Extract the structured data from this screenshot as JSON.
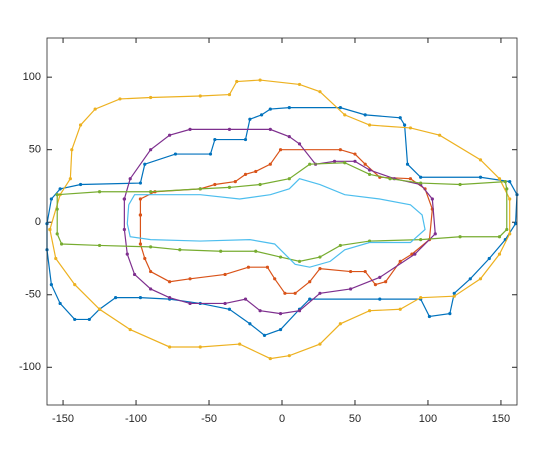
{
  "chart_data": {
    "type": "line",
    "xlim": [
      -161,
      161
    ],
    "ylim": [
      -126,
      127
    ],
    "xticks": [
      -150,
      -100,
      -50,
      0,
      50,
      100,
      150
    ],
    "yticks": [
      -100,
      -50,
      0,
      50,
      100
    ],
    "series": [
      {
        "color": "#0072bd",
        "marker": true,
        "x": [
          -161,
          -158,
          -152,
          -138,
          -97,
          -94,
          -73,
          -49,
          -46,
          -25,
          -22,
          -14,
          -8,
          5,
          40,
          57,
          81,
          84,
          86,
          95,
          136,
          156,
          161,
          160,
          153,
          142,
          129,
          118,
          115,
          101,
          95,
          67,
          19,
          12,
          -1,
          -12,
          -22,
          -36,
          -56,
          -77,
          -97,
          -114,
          -125,
          -132,
          -142,
          -152,
          -158,
          -161,
          -161
        ],
        "values": [
          -1,
          16,
          23,
          26,
          27,
          40,
          47,
          47,
          57,
          57,
          71,
          74,
          78,
          79,
          79,
          74,
          72,
          67,
          40,
          31,
          31,
          28,
          19,
          -1,
          -12,
          -25,
          -39,
          -49,
          -63,
          -65,
          -53,
          -53,
          -53,
          -60,
          -74,
          -78,
          -70,
          -60,
          -56,
          -53,
          -52,
          -52,
          -60,
          -67,
          -67,
          -56,
          -43,
          -19,
          -1
        ]
      },
      {
        "color": "#d95319",
        "marker": true,
        "x": [
          -97,
          -97,
          -87,
          -56,
          -46,
          -32,
          -25,
          -18,
          -8,
          -1,
          40,
          50,
          57,
          67,
          88,
          98,
          103,
          101,
          89,
          81,
          71,
          64,
          57,
          47,
          26,
          19,
          9,
          2,
          -5,
          -10,
          -23,
          -39,
          -63,
          -77,
          -90,
          -94,
          -97,
          -97
        ],
        "values": [
          5,
          16,
          21,
          23,
          26,
          28,
          33,
          35,
          40,
          50,
          50,
          47,
          40,
          31,
          30,
          23,
          9,
          -12,
          -22,
          -27,
          -41,
          -43,
          -34,
          -34,
          -32,
          -41,
          -49,
          -49,
          -39,
          -31,
          -31,
          -36,
          -39,
          -41,
          -34,
          -25,
          -15,
          5
        ]
      },
      {
        "color": "#edb120",
        "marker": true,
        "x": [
          -159,
          -152,
          -145,
          -144,
          -138,
          -128,
          -111,
          -90,
          -56,
          -36,
          -31,
          -15,
          12,
          26,
          43,
          60,
          88,
          108,
          136,
          149,
          156,
          156,
          149,
          136,
          118,
          95,
          81,
          60,
          40,
          26,
          5,
          -8,
          -29,
          -56,
          -77,
          -104,
          -125,
          -142,
          -155,
          -159
        ],
        "values": [
          -5,
          19,
          30,
          50,
          67,
          78,
          85,
          86,
          87,
          88,
          97,
          98,
          95,
          90,
          74,
          67,
          65,
          60,
          43,
          30,
          16,
          -8,
          -22,
          -39,
          -51,
          -52,
          -60,
          -61,
          -70,
          -84,
          -92,
          -94,
          -84,
          -86,
          -86,
          -74,
          -60,
          -43,
          -25,
          -5
        ]
      },
      {
        "color": "#7e2f8e",
        "marker": true,
        "x": [
          -108,
          -104,
          -90,
          -77,
          -63,
          -36,
          -8,
          5,
          12,
          23,
          36,
          50,
          60,
          77,
          95,
          103,
          105,
          91,
          67,
          47,
          26,
          12,
          -1,
          -15,
          -25,
          -39,
          -63,
          -77,
          -90,
          -101,
          -106,
          -108,
          -108
        ],
        "values": [
          16,
          30,
          50,
          60,
          64,
          64,
          64,
          59,
          54,
          40,
          42,
          42,
          36,
          30,
          26,
          16,
          -8,
          -22,
          -38,
          -46,
          -49,
          -61,
          -63,
          -61,
          -53,
          -56,
          -56,
          -52,
          -46,
          -36,
          -22,
          -5,
          16
        ]
      },
      {
        "color": "#77ac30",
        "marker": true,
        "x": [
          -154,
          -125,
          -90,
          -56,
          -36,
          -15,
          5,
          19,
          43,
          60,
          74,
          95,
          122,
          153,
          154,
          154,
          149,
          122,
          95,
          60,
          40,
          26,
          12,
          -1,
          -18,
          -42,
          -70,
          -90,
          -125,
          -151,
          -154,
          -154,
          -154
        ],
        "values": [
          19,
          21,
          21,
          23,
          24,
          26,
          30,
          40,
          41,
          33,
          30,
          27,
          26,
          28,
          23,
          -5,
          -10,
          -10,
          -12,
          -13,
          -16,
          -24,
          -27,
          -24,
          -20,
          -20,
          -19,
          -17,
          -16,
          -15,
          -8,
          9,
          19
        ]
      },
      {
        "color": "#4dbeee",
        "marker": false,
        "x": [
          -105,
          -101,
          -84,
          -56,
          -29,
          -8,
          5,
          12,
          26,
          43,
          67,
          88,
          96,
          98,
          88,
          60,
          43,
          33,
          19,
          9,
          -5,
          -22,
          -56,
          -90,
          -104,
          -106,
          -105
        ],
        "values": [
          12,
          19,
          19,
          19,
          16,
          19,
          23,
          30,
          26,
          19,
          16,
          12,
          5,
          -5,
          -14,
          -14,
          -19,
          -27,
          -31,
          -29,
          -15,
          -12,
          -13,
          -12,
          -10,
          -1,
          12
        ]
      }
    ]
  }
}
